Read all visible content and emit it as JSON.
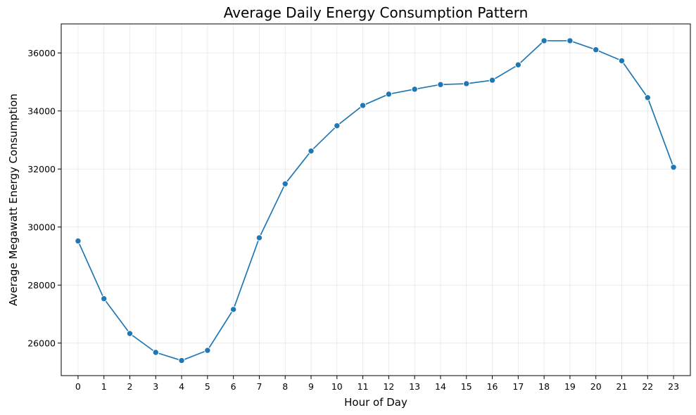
{
  "chart_data": {
    "type": "line",
    "title": "Average Daily Energy Consumption Pattern",
    "xlabel": "Hour of Day",
    "ylabel": "Average Megawatt Energy Consumption",
    "x": [
      0,
      1,
      2,
      3,
      4,
      5,
      6,
      7,
      8,
      9,
      10,
      11,
      12,
      13,
      14,
      15,
      16,
      17,
      18,
      19,
      20,
      21,
      22,
      23
    ],
    "x_ticks": [
      "0",
      "1",
      "2",
      "3",
      "4",
      "5",
      "6",
      "7",
      "8",
      "9",
      "10",
      "11",
      "12",
      "13",
      "14",
      "15",
      "16",
      "17",
      "18",
      "19",
      "20",
      "21",
      "22",
      "23"
    ],
    "xlim": [
      -0.65,
      23.65
    ],
    "ylim": [
      24880,
      37000
    ],
    "y_ticks": [
      "26000",
      "28000",
      "30000",
      "32000",
      "34000",
      "36000"
    ],
    "series": [
      {
        "values": [
          29520,
          27530,
          26330,
          25680,
          25400,
          25750,
          27160,
          29630,
          31490,
          32620,
          33490,
          34190,
          34580,
          34750,
          34910,
          34940,
          35060,
          35590,
          36420,
          36420,
          36110,
          35730,
          34460,
          32060
        ],
        "color": "#1f77b4",
        "marker": "circle"
      }
    ],
    "grid": true,
    "legend": "none"
  }
}
